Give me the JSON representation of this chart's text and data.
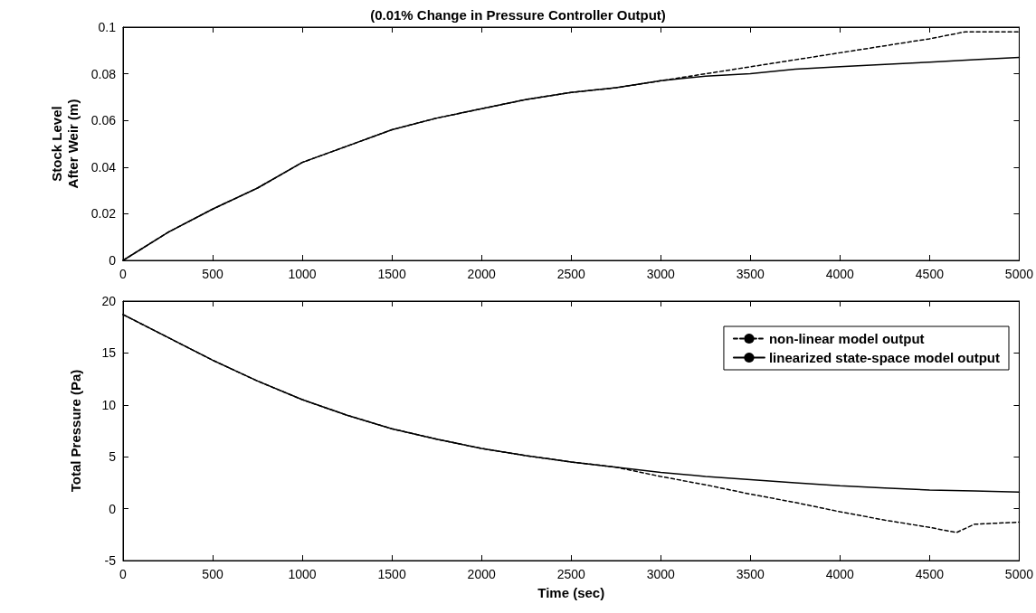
{
  "chart_data": [
    {
      "type": "line",
      "title": "(0.01% Change in Pressure Controller Output)",
      "ylabel": "Stock Level\nAfter Weir (m)",
      "xlim": [
        0,
        5000
      ],
      "xticks": [
        0,
        500,
        1000,
        1500,
        2000,
        2500,
        3000,
        3500,
        4000,
        4500,
        5000
      ],
      "ylim": [
        0,
        0.1
      ],
      "yticks": [
        0,
        0.02,
        0.04,
        0.06,
        0.08,
        0.1
      ],
      "grid": false,
      "legend": false,
      "marker": "none",
      "series": [
        {
          "color": "#000000",
          "line_style": "dashed",
          "x": [
            0,
            250,
            500,
            750,
            1000,
            1250,
            1500,
            1750,
            2000,
            2250,
            2500,
            2750,
            3000,
            3250,
            3500,
            3750,
            4000,
            4250,
            4500,
            4700,
            5000
          ],
          "values": [
            0,
            0.012,
            0.022,
            0.031,
            0.042,
            0.049,
            0.056,
            0.061,
            0.065,
            0.069,
            0.072,
            0.074,
            0.077,
            0.08,
            0.083,
            0.086,
            0.089,
            0.092,
            0.095,
            0.098,
            0.098
          ]
        },
        {
          "color": "#000000",
          "line_style": "solid",
          "x": [
            0,
            250,
            500,
            750,
            1000,
            1250,
            1500,
            1750,
            2000,
            2250,
            2500,
            2750,
            3000,
            3250,
            3500,
            3750,
            4000,
            4250,
            4500,
            4750,
            5000
          ],
          "values": [
            0,
            0.012,
            0.022,
            0.031,
            0.042,
            0.049,
            0.056,
            0.061,
            0.065,
            0.069,
            0.072,
            0.074,
            0.077,
            0.079,
            0.08,
            0.082,
            0.083,
            0.084,
            0.085,
            0.086,
            0.087
          ]
        }
      ]
    },
    {
      "type": "line",
      "xlabel": "Time (sec)",
      "ylabel": "Total Pressure (Pa)",
      "xlim": [
        0,
        5000
      ],
      "xticks": [
        0,
        500,
        1000,
        1500,
        2000,
        2500,
        3000,
        3500,
        4000,
        4500,
        5000
      ],
      "ylim": [
        -5,
        20
      ],
      "yticks": [
        -5,
        0,
        5,
        10,
        15,
        20
      ],
      "grid": false,
      "legend": "top right",
      "marker": "none",
      "series": [
        {
          "name": "non-linear model output",
          "color": "#000000",
          "line_style": "dashed",
          "x": [
            0,
            250,
            500,
            750,
            1000,
            1250,
            1500,
            1750,
            2000,
            2250,
            2500,
            2750,
            3000,
            3250,
            3500,
            3750,
            4000,
            4250,
            4500,
            4650,
            4750,
            5000
          ],
          "values": [
            18.7,
            16.5,
            14.3,
            12.3,
            10.5,
            9.0,
            7.7,
            6.7,
            5.8,
            5.1,
            4.5,
            4.0,
            3.1,
            2.3,
            1.4,
            0.6,
            -0.3,
            -1.1,
            -1.8,
            -2.3,
            -1.5,
            -1.3
          ]
        },
        {
          "name": "linearized state-space model output",
          "color": "#000000",
          "line_style": "solid",
          "x": [
            0,
            250,
            500,
            750,
            1000,
            1250,
            1500,
            1750,
            2000,
            2250,
            2500,
            2750,
            3000,
            3250,
            3500,
            3750,
            4000,
            4250,
            4500,
            4750,
            5000
          ],
          "values": [
            18.7,
            16.5,
            14.3,
            12.3,
            10.5,
            9.0,
            7.7,
            6.7,
            5.8,
            5.1,
            4.5,
            4.0,
            3.5,
            3.1,
            2.8,
            2.5,
            2.2,
            2.0,
            1.8,
            1.7,
            1.6
          ]
        }
      ]
    }
  ]
}
